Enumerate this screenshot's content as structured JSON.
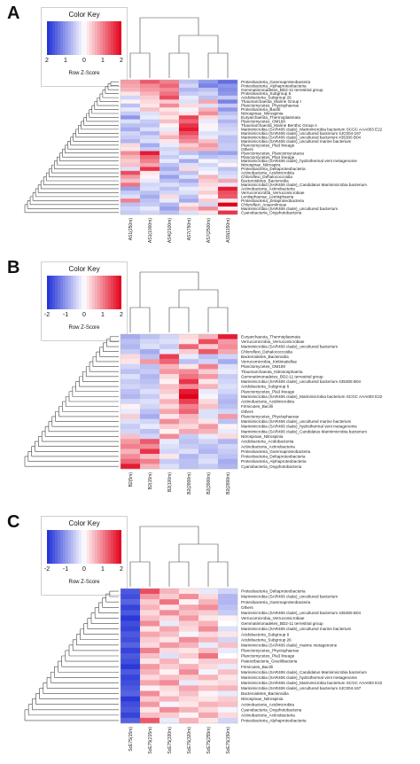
{
  "colors": {
    "low": "#1f2fd6",
    "mid": "#ffffff",
    "high": "#e3001b",
    "dendro": "#444444"
  },
  "color_key": {
    "title": "Color Key",
    "xlabel": "Row Z-Score"
  },
  "chart_data": [
    {
      "type": "heatmap",
      "panel": "A",
      "ticks": [
        "2",
        "1",
        "0",
        "1",
        "2"
      ],
      "columns": [
        "AS1(250m)",
        "AS1(1000m)",
        "AS4(2100m)",
        "AS7(750m)",
        "AS7(2500m)",
        "AS9(1150m)"
      ],
      "rows": [
        "Proteobacteria_Gammaproteobacteria",
        "Proteobacteria_Alphaproteobacteria",
        "Gemmatimonadetes_BD2-11 terrestrial group",
        "Proteobacteria_Subgroup 6",
        "Acidobacteria_Subgroup 26",
        "Thaumarchaeota_Marine Group I",
        "Planctomycetes_Phycisphaerae",
        "Proteobacteria_Bacilli",
        "Nitrospinae_Nitrospinia",
        "Euryarchaeota_Thermoplasmata",
        "Planctomycetes_OM190",
        "Thaumarchaeota_Marine Benthic Group A",
        "Marinimicrobia (SAR406 clade)_Marinimicrobia bacterium SCGC AAA003 E22",
        "Marinimicrobia (SAR406 clade)_uncultured bacterium 4JC004-167",
        "Marinimicrobia (SAR406 clade)_uncultured bacterium 435306 B04",
        "Marinimicrobia (SAR406 clade)_uncultured marine bacterium",
        "Planctomycetes_Pla3 lineage",
        "Others",
        "Planctomycetes_Planctomycetacia",
        "Planctomycetes_Pla4 lineage",
        "Marinimicrobia (SAR406 clade)_hydrothermal vent metagenome",
        "Nitrospirae_Nitrospira",
        "Proteobacteria_Deltaproteobacteria",
        "Actinobacteria_Acidimicrobiia",
        "Chloroflexi_Dehalococcoidia",
        "Bacteroidetes_Bacteroidia",
        "Marinimicrobia (SAR406 clade)_Candidatus Marinimicrobia bacterium",
        "Actinobacteria_Actinobacteria",
        "Verrucomicrobia_Verrucomicrobiae",
        "Lentisphaerae_Lentisphaeria",
        "Proteobacteria_Zetaproteobacteria",
        "Chloroflexi_Anaerolineae",
        "Marinimicrobia (SAR406 clade)_uncultured bacterium",
        "Cyanobacteria_Oxyphotobacteria"
      ],
      "values": [
        [
          0.8,
          1.3,
          1.0,
          -0.6,
          -1.0,
          -1.4
        ],
        [
          0.7,
          0.9,
          1.2,
          -0.4,
          -1.2,
          -1.0
        ],
        [
          0.6,
          0.8,
          0.9,
          -0.7,
          -0.6,
          -1.1
        ],
        [
          0.2,
          0.6,
          1.1,
          -0.5,
          -0.4,
          -1.0
        ],
        [
          -0.4,
          0.4,
          1.4,
          -0.2,
          -0.6,
          -0.5
        ],
        [
          0.1,
          0.3,
          0.4,
          -0.3,
          0.7,
          -1.2
        ],
        [
          -0.6,
          0.2,
          0.9,
          0.3,
          -0.3,
          -0.5
        ],
        [
          -0.2,
          0.5,
          0.2,
          -0.1,
          0.6,
          -1.0
        ],
        [
          -0.5,
          -0.3,
          0.4,
          0.2,
          0.9,
          -0.6
        ],
        [
          -1.0,
          -0.2,
          0.2,
          1.5,
          0.3,
          -0.4
        ],
        [
          -0.3,
          -0.5,
          0.5,
          1.2,
          -0.2,
          -0.7
        ],
        [
          -0.6,
          -0.6,
          0.1,
          1.6,
          0.1,
          -0.5
        ],
        [
          -0.8,
          -0.3,
          -0.2,
          1.8,
          -0.1,
          -0.4
        ],
        [
          -0.4,
          -0.7,
          0.3,
          1.4,
          -0.3,
          -0.3
        ],
        [
          -0.5,
          -0.4,
          0.6,
          1.1,
          -0.2,
          -0.6
        ],
        [
          -0.7,
          -0.3,
          0.2,
          0.9,
          0.5,
          -0.6
        ],
        [
          0.3,
          -0.8,
          -0.2,
          0.4,
          0.8,
          -0.5
        ],
        [
          0.2,
          -0.5,
          -0.4,
          0.6,
          0.6,
          -0.5
        ],
        [
          0.9,
          1.8,
          -0.3,
          -0.6,
          -0.8,
          -0.9
        ],
        [
          0.6,
          1.2,
          -0.5,
          -0.2,
          -0.6,
          -0.5
        ],
        [
          0.4,
          1.0,
          -0.2,
          -0.8,
          -0.1,
          -0.3
        ],
        [
          0.5,
          0.7,
          -0.6,
          -0.3,
          -0.4,
          0.1
        ],
        [
          -0.3,
          1.6,
          -0.8,
          0.3,
          -0.2,
          -0.6
        ],
        [
          1.4,
          0.2,
          -0.5,
          -0.6,
          -0.1,
          -0.4
        ],
        [
          0.8,
          0.1,
          -0.9,
          -0.3,
          0.6,
          -0.3
        ],
        [
          0.5,
          -0.2,
          -0.6,
          -0.8,
          0.4,
          0.7
        ],
        [
          1.1,
          -0.4,
          -0.3,
          -0.5,
          0.3,
          -0.2
        ],
        [
          -0.9,
          -0.3,
          -0.6,
          -0.2,
          0.2,
          1.8
        ],
        [
          -0.5,
          -0.6,
          -0.4,
          -0.3,
          0.4,
          1.4
        ],
        [
          -0.3,
          -0.8,
          0.3,
          -0.6,
          0.1,
          1.3
        ],
        [
          1.0,
          -0.6,
          -0.2,
          -0.8,
          0.4,
          0.2
        ],
        [
          -0.6,
          -0.5,
          -0.7,
          0.2,
          -0.4,
          2.0
        ],
        [
          -0.4,
          -0.2,
          -0.9,
          0.5,
          0.9,
          0.1
        ],
        [
          -0.5,
          -0.4,
          -0.6,
          -0.3,
          0.2,
          1.6
        ]
      ]
    },
    {
      "type": "heatmap",
      "panel": "B",
      "ticks": [
        "-2",
        "-1",
        "0",
        "1",
        "2"
      ],
      "columns": [
        "B2(5m)",
        "B2(15m)",
        "B2(100m)",
        "B2(2800m)",
        "B2(3900m)",
        "B2(2800m)"
      ],
      "rows": [
        "Euryarchaeota_Thermoplasmata",
        "Verrucomicrobia_Verrucomicrobiae",
        "Marinimicrobia (SAR406 clade)_uncultured bacterium",
        "Chloroflexi_Dehalococcoidia",
        "Bacteroidetes_Bacteroidia",
        "Verrucomicrobia_Kiritimatiellae",
        "Planctomycetes_OM190",
        "Thaumarchaeota_Nitrososphaeria",
        "Gemmatimonadetes_BD2-11 terrestrial group",
        "Marinimicrobia (SAR406 clade)_uncultured bacterium 435306 B04",
        "Acidobacteria_Subgroup 6",
        "Planctomycetes_Pla3 lineage",
        "Marinimicrobia (SAR406 clade)_Marinimicrobia bacterium SCGC AAA003 E22",
        "Actinobacteria_Acidimicrobiia",
        "Firmicutes_Bacilli",
        "Others",
        "Planctomycetes_Phycisphaerae",
        "Marinimicrobia (SAR406 clade)_uncultured marine bacterium",
        "Marinimicrobia (SAR406 clade)_hydrothermal vent metagenome",
        "Marinimicrobia (SAR406 clade)_Candidatus Marinimicrobia bacterium",
        "Nitrospinae_Nitrospinia",
        "Acidobacteria_Acidobacteriia",
        "Actinobacteria_Actinobacteria",
        "Proteobacteria_Gammaproteobacteria",
        "Proteobacteria_Deltaproteobacteria",
        "Proteobacteria_Alphaproteobacteria",
        "Cyanobacteria_Oxyphotobacteria"
      ],
      "values": [
        [
          -0.8,
          -0.6,
          -0.4,
          0.3,
          0.6,
          1.8
        ],
        [
          -0.6,
          -0.4,
          -0.3,
          0.2,
          1.4,
          0.8
        ],
        [
          -0.7,
          -0.3,
          -0.5,
          1.2,
          0.4,
          0.9
        ],
        [
          -0.5,
          -0.8,
          -0.2,
          0.4,
          1.3,
          0.7
        ],
        [
          0.3,
          -0.6,
          1.5,
          -0.2,
          -0.6,
          -0.4
        ],
        [
          0.2,
          0.8,
          1.2,
          -0.6,
          -0.4,
          -0.8
        ],
        [
          -0.4,
          -0.6,
          0.6,
          0.2,
          1.0,
          -0.3
        ],
        [
          -0.6,
          -0.5,
          0.8,
          0.9,
          0.4,
          -0.2
        ],
        [
          -0.3,
          -0.7,
          0.3,
          1.1,
          0.8,
          -0.5
        ],
        [
          -0.5,
          -0.6,
          0.1,
          1.6,
          0.2,
          -0.4
        ],
        [
          -0.4,
          -0.5,
          0.5,
          0.9,
          0.6,
          -0.3
        ],
        [
          -0.6,
          -0.3,
          0.4,
          1.8,
          -0.2,
          -0.4
        ],
        [
          -0.7,
          -0.5,
          0.2,
          2.0,
          -0.1,
          -0.6
        ],
        [
          -0.4,
          -0.3,
          0.6,
          1.5,
          0.3,
          -0.7
        ],
        [
          0.1,
          -0.4,
          0.3,
          1.0,
          0.5,
          -0.6
        ],
        [
          -0.2,
          -0.6,
          0.7,
          1.2,
          -0.3,
          -0.4
        ],
        [
          0.4,
          -0.8,
          0.2,
          0.6,
          -0.3,
          0.8
        ],
        [
          -0.3,
          -0.4,
          0.9,
          0.5,
          0.2,
          -0.6
        ],
        [
          -0.5,
          -0.2,
          0.4,
          0.3,
          0.8,
          0.1
        ],
        [
          -0.4,
          -0.6,
          0.1,
          0.7,
          0.6,
          -0.2
        ],
        [
          0.5,
          -0.4,
          0.9,
          -0.5,
          -0.2,
          0.3
        ],
        [
          0.8,
          1.3,
          -0.2,
          -0.6,
          -0.4,
          -0.7
        ],
        [
          1.0,
          0.9,
          -0.3,
          -0.5,
          -0.6,
          -0.4
        ],
        [
          0.6,
          1.6,
          -0.4,
          -0.3,
          -0.7,
          -0.5
        ],
        [
          0.9,
          0.5,
          0.2,
          -0.7,
          -0.4,
          -0.6
        ],
        [
          1.2,
          1.0,
          -0.5,
          -0.6,
          -0.3,
          -0.8
        ],
        [
          1.8,
          0.6,
          -0.3,
          -0.6,
          -0.5,
          -0.7
        ]
      ]
    },
    {
      "type": "heatmap",
      "panel": "C",
      "ticks": [
        "-2",
        "-1",
        "0",
        "1",
        "2"
      ],
      "columns": [
        "ScE75(15m)",
        "ScE75(215m)",
        "ScE75(330m)",
        "ScE75(320m)",
        "ScE75(255m)",
        "ScE75(150m)"
      ],
      "rows": [
        "Proteobacteria_Deltaproteobacteria",
        "Marinimicrobia (SAR406 clade)_uncultured bacterium",
        "Proteobacteria_Gammaproteobacteria",
        "Others",
        "Marinimicrobia (SAR406 clade)_uncultured bacterium 435306 B04",
        "Verrucomicrobia_Verrucomicrobiae",
        "Gemmatimonadetes_BD2-11 terrestrial group",
        "Marinimicrobia (SAR406 clade)_uncultured marine bacterium",
        "Acidobacteria_Subgroup 6",
        "Acidobacteria_Subgroup 26",
        "Marinimicrobia (SAR406 clade)_marine metagenome",
        "Planctomycetes_Phycisphaerae",
        "Planctomycetes_Pla3 lineage",
        "Patescibacteria_Gracilibacteria",
        "Firmicutes_Bacilli",
        "Marinimicrobia (SAR406 clade)_Candidatus Marinimicrobia bacterium",
        "Marinimicrobia (SAR406 clade)_hydrothermal vent metagenome",
        "Marinimicrobia (SAR406 clade)_Marinimicrobia bacterium SCGC AAA003 E22",
        "Marinimicrobia (SAR406 clade)_uncultured bacterium 4JC004-167",
        "Bacteroidetes_Bacteroidia",
        "Nitrospinae_Nitrospinia",
        "Actinobacteria_Acidimicrobiia",
        "Cyanobacteria_Oxyphotobacteria",
        "Actinobacteria_Actinobacteria",
        "Proteobacteria_Alphaproteobacteria"
      ],
      "values": [
        [
          -1.6,
          1.4,
          0.6,
          0.2,
          -0.2,
          -0.4
        ],
        [
          -1.7,
          0.8,
          0.4,
          0.9,
          0.3,
          -0.7
        ],
        [
          -1.5,
          0.4,
          1.1,
          0.1,
          0.6,
          -0.7
        ],
        [
          -1.8,
          0.6,
          0.2,
          0.7,
          0.9,
          -0.6
        ],
        [
          -1.6,
          0.3,
          0.9,
          0.5,
          0.4,
          -0.5
        ],
        [
          -1.9,
          0.5,
          0.3,
          0.8,
          0.2,
          0.1
        ],
        [
          -1.7,
          0.9,
          -0.2,
          0.4,
          0.6,
          0.0
        ],
        [
          -1.8,
          0.2,
          0.7,
          0.3,
          0.9,
          -0.3
        ],
        [
          -1.6,
          0.7,
          0.5,
          -0.1,
          0.3,
          0.2
        ],
        [
          -1.7,
          0.4,
          0.2,
          0.9,
          0.6,
          -0.4
        ],
        [
          -1.5,
          0.3,
          0.8,
          0.6,
          -0.2,
          0.5
        ],
        [
          -1.8,
          1.0,
          0.3,
          0.2,
          0.5,
          -0.2
        ],
        [
          -1.6,
          0.5,
          -0.3,
          0.4,
          1.1,
          0.0
        ],
        [
          -1.7,
          0.2,
          0.6,
          0.1,
          0.4,
          0.4
        ],
        [
          -1.9,
          0.8,
          0.4,
          0.6,
          0.3,
          -0.2
        ],
        [
          -1.6,
          0.6,
          0.1,
          0.9,
          -0.1,
          0.5
        ],
        [
          -1.8,
          0.3,
          0.5,
          0.4,
          0.6,
          0.2
        ],
        [
          -1.7,
          0.7,
          0.9,
          -0.2,
          0.2,
          0.3
        ],
        [
          -1.6,
          0.1,
          0.3,
          0.7,
          0.5,
          0.6
        ],
        [
          -1.5,
          0.9,
          0.2,
          0.5,
          0.1,
          -0.2
        ],
        [
          -1.9,
          0.4,
          0.6,
          0.3,
          0.2,
          0.4
        ],
        [
          -1.7,
          0.8,
          -0.1,
          0.2,
          0.6,
          0.5
        ],
        [
          -1.6,
          0.2,
          0.9,
          0.6,
          0.3,
          -0.1
        ],
        [
          -1.8,
          0.5,
          0.4,
          0.1,
          0.7,
          0.3
        ],
        [
          -1.5,
          1.3,
          -0.2,
          0.6,
          0.2,
          -0.4
        ]
      ]
    }
  ]
}
